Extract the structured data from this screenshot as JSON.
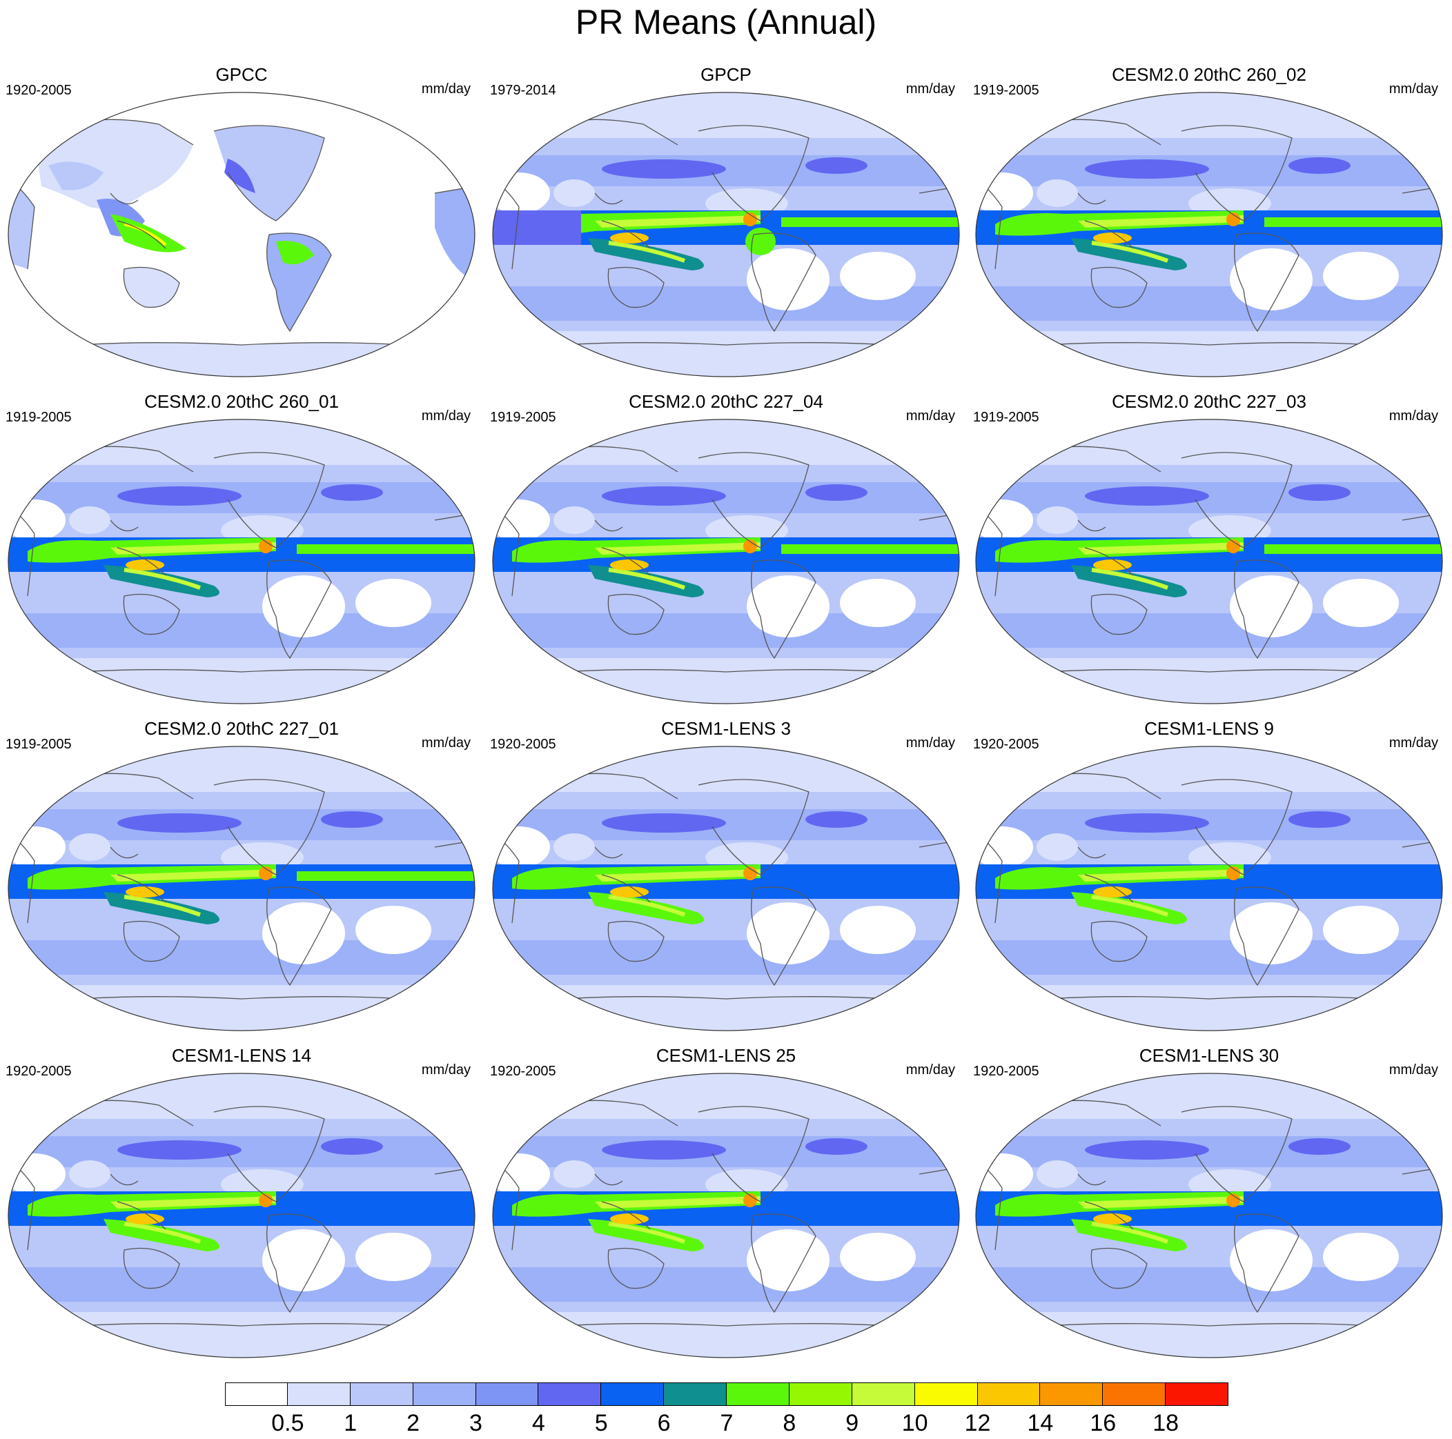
{
  "title": "PR Means (Annual)",
  "units": "mm/day",
  "colorbar": {
    "colors": [
      "#ffffff",
      "#d8e0fb",
      "#bac7f9",
      "#9cb1f8",
      "#7f95f6",
      "#6167f1",
      "#0a62f3",
      "#0f8f8f",
      "#5bf70b",
      "#95f701",
      "#c5fb38",
      "#fbfb00",
      "#fbc700",
      "#fb9800",
      "#fb7401",
      "#fb1600"
    ],
    "labels": [
      "0.5",
      "1",
      "2",
      "3",
      "4",
      "5",
      "6",
      "7",
      "8",
      "9",
      "10",
      "12",
      "14",
      "16",
      "18"
    ]
  },
  "panels": [
    {
      "title": "GPCC",
      "period": "1920-2005",
      "units": "mm/day",
      "kind": "land"
    },
    {
      "title": "GPCP",
      "period": "1979-2014",
      "units": "mm/day",
      "kind": "obs"
    },
    {
      "title": "CESM2.0 20thC 260_02",
      "period": "1919-2005",
      "units": "mm/day",
      "kind": "model"
    },
    {
      "title": "CESM2.0 20thC 260_01",
      "period": "1919-2005",
      "units": "mm/day",
      "kind": "model"
    },
    {
      "title": "CESM2.0 20thC 227_04",
      "period": "1919-2005",
      "units": "mm/day",
      "kind": "model"
    },
    {
      "title": "CESM2.0 20thC 227_03",
      "period": "1919-2005",
      "units": "mm/day",
      "kind": "model"
    },
    {
      "title": "CESM2.0 20thC 227_01",
      "period": "1919-2005",
      "units": "mm/day",
      "kind": "model"
    },
    {
      "title": "CESM1-LENS 3",
      "period": "1920-2005",
      "units": "mm/day",
      "kind": "lens"
    },
    {
      "title": "CESM1-LENS 9",
      "period": "1920-2005",
      "units": "mm/day",
      "kind": "lens"
    },
    {
      "title": "CESM1-LENS 14",
      "period": "1920-2005",
      "units": "mm/day",
      "kind": "lens"
    },
    {
      "title": "CESM1-LENS 25",
      "period": "1920-2005",
      "units": "mm/day",
      "kind": "lens"
    },
    {
      "title": "CESM1-LENS 30",
      "period": "1920-2005",
      "units": "mm/day",
      "kind": "lens"
    }
  ]
}
